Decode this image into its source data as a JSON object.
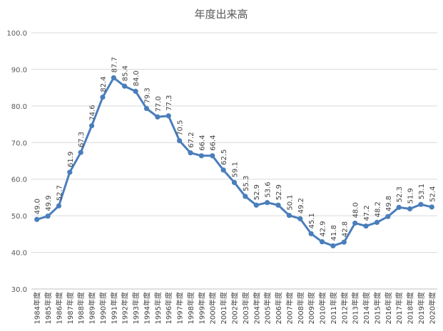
{
  "chart_data": {
    "type": "line",
    "title": "年度出来高",
    "xlabel": "",
    "ylabel": "",
    "ylim": [
      30,
      100
    ],
    "yticks": [
      "30.0",
      "40.0",
      "50.0",
      "60.0",
      "70.0",
      "80.0",
      "90.0",
      "100.0"
    ],
    "grid": true,
    "legend": "none",
    "color": "#4a7ebb",
    "categories": [
      "1984年度",
      "1985年度",
      "1986年度",
      "1987年度",
      "1988年度",
      "1989年度",
      "1990年度",
      "1991年度",
      "1992年度",
      "1993年度",
      "1994年度",
      "1995年度",
      "1996年度",
      "1997年度",
      "1998年度",
      "1999年度",
      "2000年度",
      "2001年度",
      "2002年度",
      "2003年度",
      "2004年度",
      "2005年度",
      "2006年度",
      "2007年度",
      "2008年度",
      "2009年度",
      "2010年度",
      "2011年度",
      "2012年度",
      "2013年度",
      "2014年度",
      "2015年度",
      "2016年度",
      "2017年度",
      "2018年度",
      "2019年度",
      "2020年度"
    ],
    "series": [
      {
        "values": [
          49.0,
          49.9,
          52.7,
          61.9,
          67.3,
          74.6,
          82.4,
          87.7,
          85.4,
          84.0,
          79.3,
          77.0,
          77.3,
          70.5,
          67.2,
          66.4,
          66.4,
          62.5,
          59.1,
          55.3,
          52.9,
          53.6,
          52.9,
          50.1,
          49.2,
          45.1,
          42.9,
          41.8,
          42.8,
          48.0,
          47.2,
          48.2,
          49.8,
          52.3,
          51.9,
          53.1,
          52.4
        ]
      }
    ]
  }
}
